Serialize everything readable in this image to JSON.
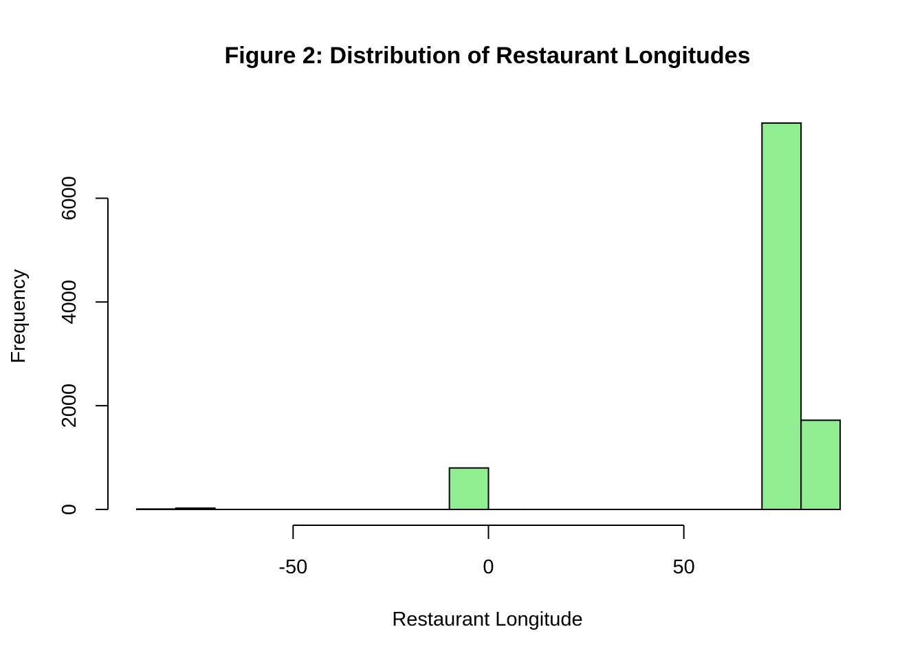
{
  "chart_data": {
    "type": "bar",
    "title": "Figure 2: Distribution of Restaurant Longitudes",
    "xlabel": "Restaurant Longitude",
    "ylabel": "Frequency",
    "bin_width": 10,
    "bins": [
      {
        "start": -90,
        "end": -80,
        "count": 8
      },
      {
        "start": -80,
        "end": -70,
        "count": 25
      },
      {
        "start": -70,
        "end": -60,
        "count": 0
      },
      {
        "start": -60,
        "end": -50,
        "count": 0
      },
      {
        "start": -50,
        "end": -40,
        "count": 0
      },
      {
        "start": -40,
        "end": -30,
        "count": 0
      },
      {
        "start": -30,
        "end": -20,
        "count": 0
      },
      {
        "start": -20,
        "end": -10,
        "count": 0
      },
      {
        "start": -10,
        "end": 0,
        "count": 800
      },
      {
        "start": 0,
        "end": 10,
        "count": 0
      },
      {
        "start": 10,
        "end": 20,
        "count": 0
      },
      {
        "start": 20,
        "end": 30,
        "count": 0
      },
      {
        "start": 30,
        "end": 40,
        "count": 0
      },
      {
        "start": 40,
        "end": 50,
        "count": 0
      },
      {
        "start": 50,
        "end": 60,
        "count": 0
      },
      {
        "start": 60,
        "end": 70,
        "count": 0
      },
      {
        "start": 70,
        "end": 80,
        "count": 7450
      },
      {
        "start": 80,
        "end": 90,
        "count": 1720
      }
    ],
    "xlim": [
      -90,
      90
    ],
    "ylim": [
      0,
      7450
    ],
    "x_ticks": [
      -50,
      0,
      50
    ],
    "x_tick_labels": [
      "-50",
      "0",
      "50"
    ],
    "y_ticks": [
      0,
      2000,
      4000,
      6000
    ],
    "y_tick_labels": [
      "0",
      "2000",
      "4000",
      "6000"
    ],
    "bar_fill": "#90ee90",
    "bar_stroke": "#000000",
    "grid": false,
    "legend": "none"
  }
}
